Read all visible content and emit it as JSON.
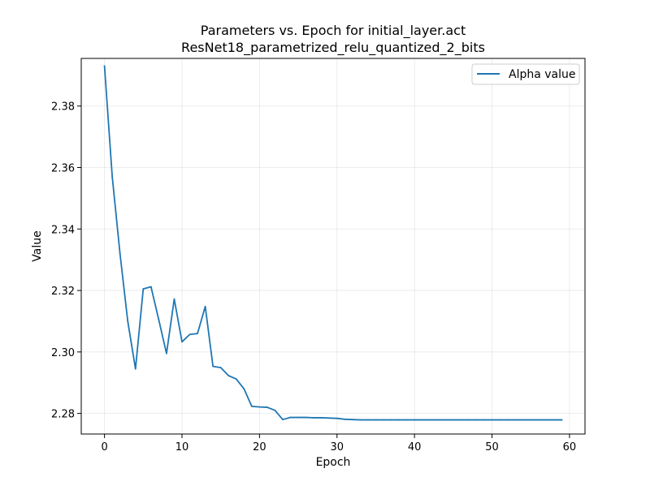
{
  "chart_data": {
    "type": "line",
    "title_line1": "Parameters vs. Epoch for initial_layer.act",
    "title_line2": "ResNet18_parametrized_relu_quantized_2_bits",
    "xlabel": "Epoch",
    "ylabel": "Value",
    "xlim": [
      -3,
      62
    ],
    "ylim": [
      2.2733,
      2.3955
    ],
    "xticks": [
      0,
      10,
      20,
      30,
      40,
      50,
      60
    ],
    "yticks": [
      2.28,
      2.3,
      2.32,
      2.34,
      2.36,
      2.38
    ],
    "ytick_labels": [
      "2.28",
      "2.30",
      "2.32",
      "2.34",
      "2.36",
      "2.38"
    ],
    "grid": true,
    "legend_position": "top-right",
    "series": [
      {
        "name": "Alpha value",
        "color": "#1f77b4",
        "x": [
          0,
          1,
          2,
          3,
          4,
          5,
          6,
          7,
          8,
          9,
          10,
          11,
          12,
          13,
          14,
          15,
          16,
          17,
          18,
          19,
          20,
          21,
          22,
          23,
          24,
          25,
          26,
          27,
          28,
          29,
          30,
          31,
          32,
          33,
          34,
          35,
          36,
          37,
          38,
          39,
          40,
          41,
          42,
          43,
          44,
          45,
          46,
          47,
          48,
          49,
          50,
          51,
          52,
          53,
          54,
          55,
          56,
          57,
          58,
          59
        ],
        "y": [
          2.393,
          2.357,
          2.332,
          2.31,
          2.2945,
          2.3205,
          2.3212,
          2.3105,
          2.2995,
          2.3172,
          2.3033,
          2.3057,
          2.306,
          2.3148,
          2.2953,
          2.2949,
          2.2923,
          2.2912,
          2.288,
          2.2823,
          2.2821,
          2.282,
          2.281,
          2.278,
          2.2787,
          2.2787,
          2.2787,
          2.2786,
          2.2786,
          2.2785,
          2.2784,
          2.2781,
          2.278,
          2.2779,
          2.2779,
          2.2779,
          2.2779,
          2.2779,
          2.2779,
          2.2779,
          2.2779,
          2.2779,
          2.2779,
          2.2779,
          2.2779,
          2.2779,
          2.2779,
          2.2779,
          2.2779,
          2.2779,
          2.2779,
          2.2779,
          2.2779,
          2.2779,
          2.2779,
          2.2779,
          2.2779,
          2.2779,
          2.2779,
          2.2779
        ]
      }
    ]
  }
}
